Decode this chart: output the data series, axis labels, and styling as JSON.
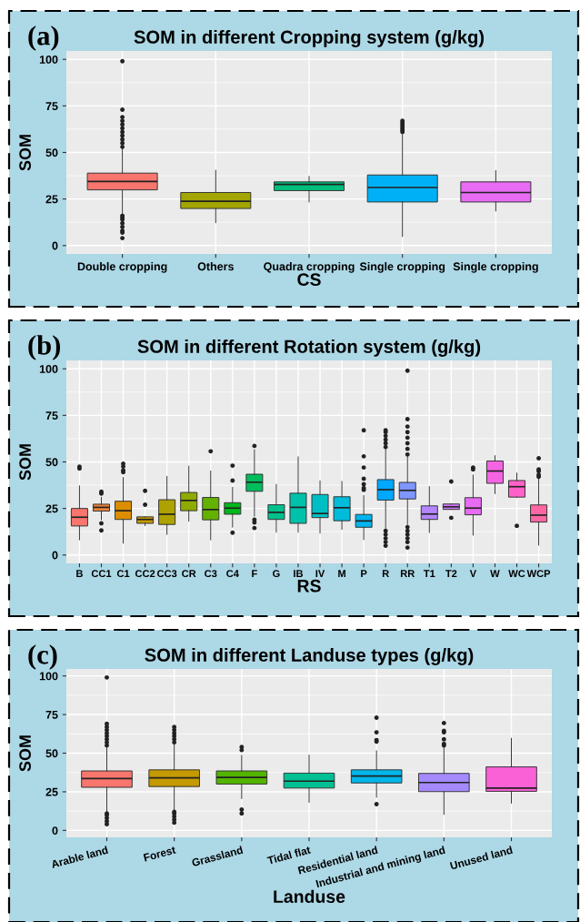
{
  "chart_data": [
    {
      "type": "box",
      "title": "SOM in different Cropping system (g/kg)",
      "xlabel": "CS",
      "ylabel": "SOM",
      "annotations": [
        "(a)"
      ],
      "grid": true,
      "legend": false,
      "categories": [
        "Double cropping",
        "Others",
        "Quadra cropping",
        "Single cropping",
        "Single cropping"
      ],
      "colors": [
        "#f8766d",
        "#a3a500",
        "#00bf7d",
        "#00b0f6",
        "#e76bf3"
      ],
      "ylim": [
        -4.5,
        104.5
      ],
      "yticks": [
        0,
        25,
        50,
        75,
        100
      ],
      "boxes": [
        {
          "low": 17,
          "q1": 29.9,
          "median": 34.4,
          "q3": 38.9,
          "high": 52,
          "outliers": [
            53,
            55,
            57,
            59,
            61,
            63,
            65,
            67,
            69,
            73,
            99,
            4,
            7,
            8,
            10,
            12,
            14,
            15,
            16
          ]
        },
        {
          "low": 12.3,
          "q1": 19.9,
          "median": 23.8,
          "q3": 28.5,
          "high": 40.4
        },
        {
          "low": 23.4,
          "q1": 29.5,
          "median": 32.8,
          "q3": 34.2,
          "high": 37.1
        },
        {
          "low": 4.9,
          "q1": 23.4,
          "median": 31.2,
          "q3": 37.9,
          "high": 59.6,
          "outliers": [
            61,
            62,
            63,
            64,
            65,
            66,
            67
          ]
        },
        {
          "low": 18.6,
          "q1": 23.4,
          "median": 28.5,
          "q3": 34.2,
          "high": 40.2
        }
      ]
    },
    {
      "type": "box",
      "title": "SOM in different Rotation system (g/kg)",
      "xlabel": "RS",
      "ylabel": "SOM",
      "annotations": [
        "(b)"
      ],
      "grid": true,
      "legend": false,
      "categories": [
        "B",
        "CC1",
        "C1",
        "CC2",
        "CC3",
        "CR",
        "C3",
        "C4",
        "F",
        "G",
        "IB",
        "IV",
        "M",
        "P",
        "R",
        "RR",
        "T1",
        "T2",
        "V",
        "W",
        "WC",
        "WCP"
      ],
      "colors": [
        "#f8766d",
        "#ec8239",
        "#db8e00",
        "#c79800",
        "#aea200",
        "#8faa00",
        "#64b200",
        "#00b81b",
        "#00bd5c",
        "#00c08b",
        "#00c1aa",
        "#00bfc4",
        "#00bbda",
        "#00b4ef",
        "#00a8ff",
        "#7f96ff",
        "#b385ff",
        "#d277ff",
        "#e76bf3",
        "#f564e3",
        "#ff61c9",
        "#ff67a4"
      ],
      "ylim": [
        -4.5,
        104.5
      ],
      "yticks": [
        0,
        25,
        50,
        75,
        100
      ],
      "boxes": [
        {
          "low": 8.2,
          "q1": 15.6,
          "median": 20.3,
          "q3": 25,
          "high": 37.1,
          "outliers": [
            46.5,
            47.5
          ]
        },
        {
          "low": 19,
          "q1": 23.6,
          "median": 25.6,
          "q3": 27.3,
          "high": 31,
          "outliers": [
            33,
            34,
            17,
            13.2
          ]
        },
        {
          "low": 6.4,
          "q1": 19.1,
          "median": 23.8,
          "q3": 28.9,
          "high": 41.6,
          "outliers": [
            44.5,
            45.5,
            47.5,
            49
          ]
        },
        {
          "low": 15.8,
          "q1": 17,
          "median": 19.1,
          "q3": 20.5,
          "high": 20.5,
          "outliers": [
            27,
            34.5
          ]
        },
        {
          "low": 11.1,
          "q1": 16.4,
          "median": 21.9,
          "q3": 29.7,
          "high": 42.2
        },
        {
          "low": 18.2,
          "q1": 23.8,
          "median": 29.3,
          "q3": 33.6,
          "high": 47.7
        },
        {
          "low": 8.2,
          "q1": 18.9,
          "median": 24.4,
          "q3": 30.9,
          "high": 45.1,
          "outliers": [
            55.7
          ]
        },
        {
          "low": 15,
          "q1": 21.9,
          "median": 25.2,
          "q3": 28.1,
          "high": 36.3,
          "outliers": [
            40,
            48,
            12
          ]
        },
        {
          "low": 20.9,
          "q1": 34.2,
          "median": 39.1,
          "q3": 43.4,
          "high": 56.6,
          "outliers": [
            58.6,
            19,
            17.5,
            14.5
          ]
        },
        {
          "low": 12.3,
          "q1": 19.1,
          "median": 22.9,
          "q3": 27,
          "high": 37.9
        },
        {
          "low": 12.3,
          "q1": 17,
          "median": 25.6,
          "q3": 33.2,
          "high": 52.7
        },
        {
          "low": 11.8,
          "q1": 20.1,
          "median": 22.3,
          "q3": 32.5,
          "high": 39.8
        },
        {
          "low": 13.8,
          "q1": 18.4,
          "median": 25.4,
          "q3": 31.3,
          "high": 39.5
        },
        {
          "low": 8.3,
          "q1": 14.9,
          "median": 18.3,
          "q3": 21.8,
          "high": 31.9,
          "outliers": [
            35,
            36,
            38,
            41,
            47,
            53,
            67
          ]
        },
        {
          "low": 14.4,
          "q1": 29.5,
          "median": 35.1,
          "q3": 40.5,
          "high": 57,
          "outliers": [
            58,
            60,
            62,
            64,
            66,
            67,
            5,
            7,
            9,
            11,
            13
          ]
        },
        {
          "low": 16.4,
          "q1": 30.1,
          "median": 34.7,
          "q3": 39,
          "high": 52.8,
          "outliers": [
            54,
            57,
            60,
            63,
            66,
            69,
            73,
            99,
            4,
            7,
            9,
            11,
            13,
            15
          ]
        },
        {
          "low": 12.1,
          "q1": 19.1,
          "median": 22,
          "q3": 26.4,
          "high": 36.7
        },
        {
          "low": 24.5,
          "q1": 24.5,
          "median": 25.9,
          "q3": 27.4,
          "high": 27.4,
          "outliers": [
            39.5,
            20
          ]
        },
        {
          "low": 10.7,
          "q1": 21.6,
          "median": 25.2,
          "q3": 30.8,
          "high": 42.9,
          "outliers": [
            46,
            47
          ]
        },
        {
          "low": 33,
          "q1": 38.5,
          "median": 45.1,
          "q3": 50.5,
          "high": 53.3
        },
        {
          "low": 31.1,
          "q1": 31.1,
          "median": 36.7,
          "q3": 40,
          "high": 44,
          "outliers": [
            15.7
          ]
        },
        {
          "low": 5.3,
          "q1": 17.7,
          "median": 21.4,
          "q3": 26.9,
          "high": 41,
          "outliers": [
            42,
            43,
            45,
            46,
            52
          ]
        }
      ]
    },
    {
      "type": "box",
      "title": "SOM in different Landuse types (g/kg)",
      "xlabel": "Landuse",
      "ylabel": "SOM",
      "annotations": [
        "(c)"
      ],
      "grid": true,
      "legend": false,
      "categories": [
        "Arable land",
        "Forest",
        "Grassland",
        "Tidal flat",
        "Residential land",
        "Industrial and mining land",
        "Unused land"
      ],
      "colors": [
        "#f8766d",
        "#c49a00",
        "#53b400",
        "#00c094",
        "#00b6eb",
        "#a58aff",
        "#fb61d7"
      ],
      "ylim": [
        -4.5,
        104.5
      ],
      "yticks": [
        0,
        25,
        50,
        75,
        100
      ],
      "boxes": [
        {
          "low": 12,
          "q1": 27.9,
          "median": 33.6,
          "q3": 38.5,
          "high": 53.4,
          "outliers": [
            55,
            57,
            59,
            61,
            63,
            65,
            67,
            69,
            99,
            4,
            6,
            8,
            10,
            11
          ]
        },
        {
          "low": 13,
          "q1": 28.4,
          "median": 34,
          "q3": 39.2,
          "high": 55.8,
          "outliers": [
            57,
            59,
            61,
            63,
            65,
            67,
            5,
            7,
            9,
            11,
            12
          ]
        },
        {
          "low": 20.6,
          "q1": 30,
          "median": 34.3,
          "q3": 38.5,
          "high": 48.5,
          "outliers": [
            52,
            54,
            11,
            13.5
          ]
        },
        {
          "low": 18.2,
          "q1": 27.4,
          "median": 31.9,
          "q3": 37.1,
          "high": 48.7
        },
        {
          "low": 21.5,
          "q1": 30.7,
          "median": 35.2,
          "q3": 39.2,
          "high": 51.5,
          "outliers": [
            57.5,
            58.5,
            63.5,
            73,
            17
          ]
        },
        {
          "low": 10.4,
          "q1": 25.1,
          "median": 31,
          "q3": 36.9,
          "high": 53.4,
          "outliers": [
            55,
            56,
            59,
            63.5,
            64.5,
            69.5
          ]
        },
        {
          "low": 17.7,
          "q1": 25.3,
          "median": 27.4,
          "q3": 41.1,
          "high": 59.6
        }
      ]
    }
  ]
}
